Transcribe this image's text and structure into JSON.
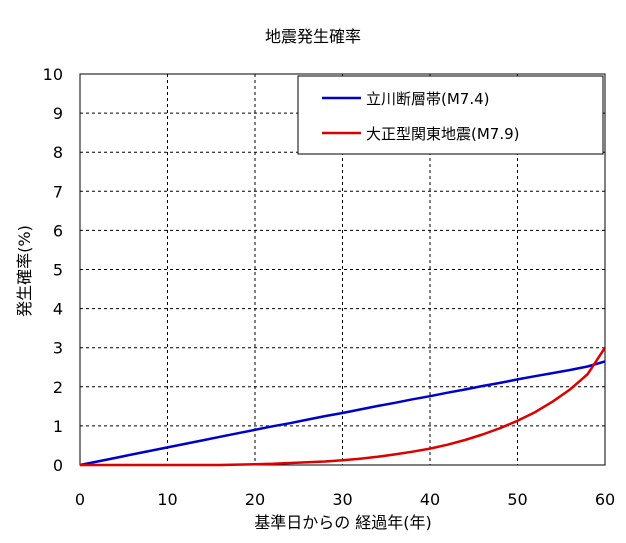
{
  "chart_data": {
    "type": "line",
    "title": "地震発生確率",
    "xlabel": "基準日からの 経過年(年)",
    "ylabel": "発生確率(%)",
    "xlim": [
      0,
      60
    ],
    "ylim": [
      0,
      10
    ],
    "xticks": [
      "0",
      "10",
      "20",
      "30",
      "40",
      "50",
      "60"
    ],
    "yticks": [
      "0",
      "1",
      "2",
      "3",
      "4",
      "5",
      "6",
      "7",
      "8",
      "9",
      "10"
    ],
    "grid": true,
    "legend_position": "top-right",
    "series": [
      {
        "name": "立川断層帯(M7.4)",
        "color": "#0000cc",
        "x": [
          0,
          2,
          4,
          6,
          8,
          10,
          12,
          14,
          16,
          18,
          20,
          22,
          24,
          26,
          28,
          30,
          32,
          34,
          36,
          38,
          40,
          42,
          44,
          46,
          48,
          50,
          52,
          54,
          56,
          58,
          60
        ],
        "y": [
          0,
          0.09,
          0.18,
          0.27,
          0.36,
          0.45,
          0.54,
          0.63,
          0.72,
          0.81,
          0.9,
          0.99,
          1.07,
          1.16,
          1.25,
          1.33,
          1.42,
          1.51,
          1.59,
          1.68,
          1.76,
          1.85,
          1.93,
          2.02,
          2.1,
          2.19,
          2.27,
          2.35,
          2.43,
          2.52,
          2.65
        ]
      },
      {
        "name": "大正型関東地震(M7.9)",
        "color": "#dd0000",
        "x": [
          0,
          2,
          4,
          6,
          8,
          10,
          12,
          14,
          16,
          18,
          20,
          22,
          24,
          26,
          28,
          30,
          32,
          34,
          36,
          38,
          40,
          42,
          44,
          46,
          48,
          50,
          52,
          54,
          56,
          58,
          60
        ],
        "y": [
          0,
          0,
          0,
          0,
          0,
          0,
          0,
          0,
          0,
          0.01,
          0.02,
          0.03,
          0.05,
          0.07,
          0.09,
          0.12,
          0.16,
          0.21,
          0.27,
          0.34,
          0.42,
          0.52,
          0.64,
          0.78,
          0.94,
          1.13,
          1.35,
          1.62,
          1.93,
          2.32,
          3.0
        ]
      }
    ]
  }
}
